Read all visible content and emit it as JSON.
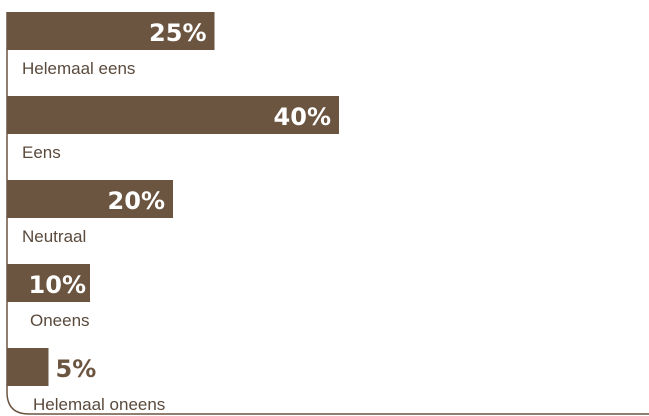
{
  "chart_data": {
    "type": "bar",
    "orientation": "horizontal",
    "categories": [
      "Helemaal eens",
      "Eens",
      "Neutraal",
      "Oneens",
      "Helemaal oneens"
    ],
    "values": [
      25,
      40,
      20,
      10,
      5
    ],
    "value_labels": [
      "25%",
      "40%",
      "20%",
      "10%",
      "5%"
    ],
    "unit": "%",
    "xlim": [
      0,
      40
    ],
    "bar_color": "#6b5440",
    "value_label_inside_color": "#ffffff",
    "value_label_outside_color": "#6b5440",
    "category_label_color": "#5a4a3c",
    "frame_color": "#6b5440",
    "grid": false,
    "legend": "none"
  }
}
